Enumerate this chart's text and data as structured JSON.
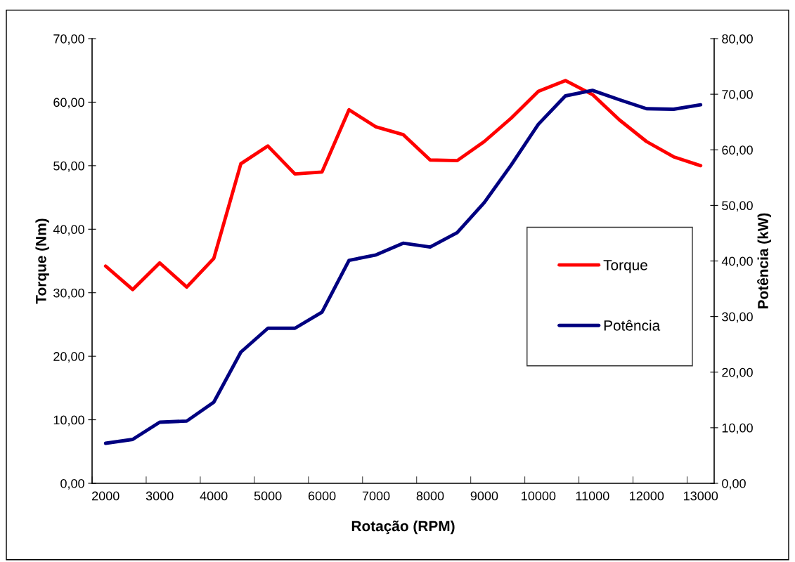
{
  "chart_data": {
    "type": "line",
    "xlabel": "Rotação (RPM)",
    "ylabel": "Torque (Nm)",
    "y2label": "Potência (kW)",
    "categories": [
      "2000",
      null,
      "3000",
      null,
      "4000",
      null,
      "5000",
      null,
      "6000",
      null,
      "7000",
      null,
      "8000",
      null,
      "9000",
      null,
      "10000",
      null,
      "11000",
      null,
      "12000",
      null,
      "13000"
    ],
    "series": [
      {
        "name": "Torque",
        "color": "#ff0000",
        "values": [
          34.2,
          30.5,
          34.7,
          30.9,
          35.4,
          50.3,
          53.1,
          48.7,
          49.0,
          58.8,
          56.1,
          54.9,
          50.9,
          50.8,
          53.8,
          57.5,
          61.7,
          63.4,
          61.2,
          57.2,
          53.8,
          51.4,
          50.0
        ]
      },
      {
        "name": "Potência",
        "color": "#000080",
        "axis": "y2",
        "values": [
          7.2,
          7.9,
          11.0,
          11.2,
          14.6,
          23.6,
          27.9,
          27.9,
          30.8,
          40.1,
          41.1,
          43.2,
          42.5,
          45.1,
          50.5,
          57.3,
          64.6,
          69.7,
          70.7,
          69.0,
          67.4,
          67.3,
          68.1
        ]
      }
    ],
    "ylim": [
      0,
      70
    ],
    "yticks": [
      {
        "value": 0,
        "label": "0,00"
      },
      {
        "value": 10,
        "label": "10,00"
      },
      {
        "value": 20,
        "label": "20,00"
      },
      {
        "value": 30,
        "label": "30,00"
      },
      {
        "value": 40,
        "label": "40,00"
      },
      {
        "value": 50,
        "label": "50,00"
      },
      {
        "value": 60,
        "label": "60,00"
      },
      {
        "value": 70,
        "label": "70,00"
      }
    ],
    "y2lim": [
      0,
      80
    ],
    "y2ticks": [
      {
        "value": 0,
        "label": "0,00"
      },
      {
        "value": 10,
        "label": "10,00"
      },
      {
        "value": 20,
        "label": "20,00"
      },
      {
        "value": 30,
        "label": "30,00"
      },
      {
        "value": 40,
        "label": "40,00"
      },
      {
        "value": 50,
        "label": "50,00"
      },
      {
        "value": 60,
        "label": "60,00"
      },
      {
        "value": 70,
        "label": "70,00"
      },
      {
        "value": 80,
        "label": "80,00"
      }
    ],
    "grid": false,
    "legend": "right",
    "marker": "none",
    "line_style": "solid"
  }
}
